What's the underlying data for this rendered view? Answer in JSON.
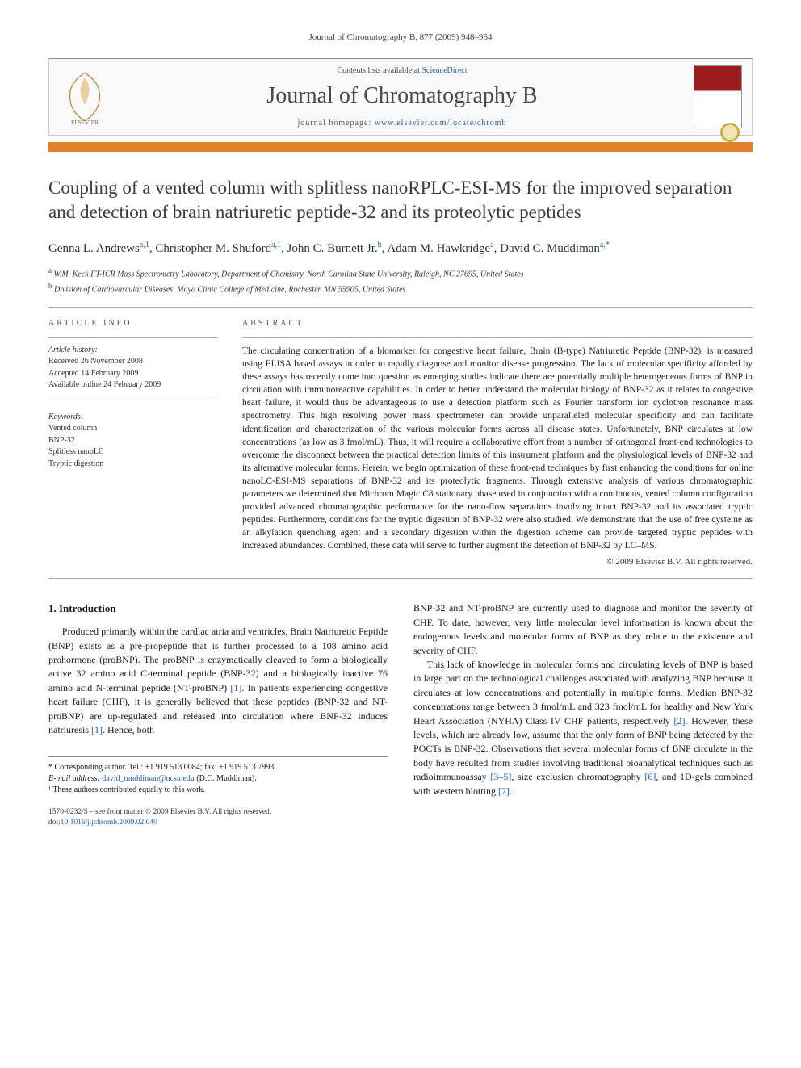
{
  "header_citation": "Journal of Chromatography B, 877 (2009) 948–954",
  "banner": {
    "contents_prefix": "Contents lists available at ",
    "contents_link": "ScienceDirect",
    "journal_title": "Journal of Chromatography B",
    "homepage_prefix": "journal homepage: ",
    "homepage_url": "www.elsevier.com/locate/chromb",
    "publisher": "ELSEVIER"
  },
  "title": "Coupling of a vented column with splitless nanoRPLC-ESI-MS for the improved separation and detection of brain natriuretic peptide-32 and its proteolytic peptides",
  "authors": [
    {
      "name": "Genna L. Andrews",
      "sup": "a,1"
    },
    {
      "name": "Christopher M. Shuford",
      "sup": "a,1"
    },
    {
      "name": "John C. Burnett Jr.",
      "sup": "b"
    },
    {
      "name": "Adam M. Hawkridge",
      "sup": "a"
    },
    {
      "name": "David C. Muddiman",
      "sup": "a,*"
    }
  ],
  "affiliations": [
    {
      "sup": "a",
      "text": "W.M. Keck FT-ICR Mass Spectrometry Laboratory, Department of Chemistry, North Carolina State University, Raleigh, NC 27695, United States"
    },
    {
      "sup": "b",
      "text": "Division of Cardiovascular Diseases, Mayo Clinic College of Medicine, Rochester, MN 55905, United States"
    }
  ],
  "article_info": {
    "heading": "ARTICLE INFO",
    "history_label": "Article history:",
    "received": "Received 26 November 2008",
    "accepted": "Accepted 14 February 2009",
    "online": "Available online 24 February 2009",
    "keywords_label": "Keywords:",
    "keywords": [
      "Vented column",
      "BNP-32",
      "Splitless nanoLC",
      "Tryptic digestion"
    ]
  },
  "abstract": {
    "heading": "ABSTRACT",
    "text": "The circulating concentration of a biomarker for congestive heart failure, Brain (B-type) Natriuretic Peptide (BNP-32), is measured using ELISA based assays in order to rapidly diagnose and monitor disease progression. The lack of molecular specificity afforded by these assays has recently come into question as emerging studies indicate there are potentially multiple heterogeneous forms of BNP in circulation with immunoreactive capabilities. In order to better understand the molecular biology of BNP-32 as it relates to congestive heart failure, it would thus be advantageous to use a detection platform such as Fourier transform ion cyclotron resonance mass spectrometry. This high resolving power mass spectrometer can provide unparalleled molecular specificity and can facilitate identification and characterization of the various molecular forms across all disease states. Unfortunately, BNP circulates at low concentrations (as low as 3 fmol/mL). Thus, it will require a collaborative effort from a number of orthogonal front-end technologies to overcome the disconnect between the practical detection limits of this instrument platform and the physiological levels of BNP-32 and its alternative molecular forms. Herein, we begin optimization of these front-end techniques by first enhancing the conditions for online nanoLC-ESI-MS separations of BNP-32 and its proteolytic fragments. Through extensive analysis of various chromatographic parameters we determined that Michrom Magic C8 stationary phase used in conjunction with a continuous, vented column configuration provided advanced chromatographic performance for the nano-flow separations involving intact BNP-32 and its associated tryptic peptides. Furthermore, conditions for the tryptic digestion of BNP-32 were also studied. We demonstrate that the use of free cysteine as an alkylation quenching agent and a secondary digestion within the digestion scheme can provide targeted tryptic peptides with increased abundances. Combined, these data will serve to further augment the detection of BNP-32 by LC–MS.",
    "copyright": "© 2009 Elsevier B.V. All rights reserved."
  },
  "body": {
    "section_heading": "1. Introduction",
    "left_para": "Produced primarily within the cardiac atria and ventricles, Brain Natriuretic Peptide (BNP) exists as a pre-propeptide that is further processed to a 108 amino acid prohormone (proBNP). The proBNP is enzymatically cleaved to form a biologically active 32 amino acid C-terminal peptide (BNP-32) and a biologically inactive 76 amino acid N-terminal peptide (NT-proBNP) [1]. In patients experiencing congestive heart failure (CHF), it is generally believed that these peptides (BNP-32 and NT-proBNP) are up-regulated and released into circulation where BNP-32 induces natriuresis [1]. Hence, both",
    "right_para1": "BNP-32 and NT-proBNP are currently used to diagnose and monitor the severity of CHF. To date, however, very little molecular level information is known about the endogenous levels and molecular forms of BNP as they relate to the existence and severity of CHF.",
    "right_para2": "This lack of knowledge in molecular forms and circulating levels of BNP is based in large part on the technological challenges associated with analyzing BNP because it circulates at low concentrations and potentially in multiple forms. Median BNP-32 concentrations range between 3 fmol/mL and 323 fmol/mL for healthy and New York Heart Association (NYHA) Class IV CHF patients, respectively [2]. However, these levels, which are already low, assume that the only form of BNP being detected by the POCTs is BNP-32. Observations that several molecular forms of BNP circulate in the body have resulted from studies involving traditional bioanalytical techniques such as radioimmunoassay [3–5], size exclusion chromatography [6], and 1D-gels combined with western blotting [7]."
  },
  "footnotes": {
    "corr_label": "* Corresponding author. Tel.: +1 919 513 0084; fax: +1 919 513 7993.",
    "email_label": "E-mail address:",
    "email": "david_muddiman@ncsu.edu",
    "email_paren": "(D.C. Muddiman).",
    "equal": "¹ These authors contributed equally to this work."
  },
  "footer": {
    "line1": "1570-0232/$ – see front matter © 2009 Elsevier B.V. All rights reserved.",
    "doi_label": "doi:",
    "doi": "10.1016/j.jchromb.2009.02.040"
  },
  "colors": {
    "orange_rule": "#e2812a",
    "link": "#1e5fb3",
    "cover_red": "#9b1c1c"
  }
}
